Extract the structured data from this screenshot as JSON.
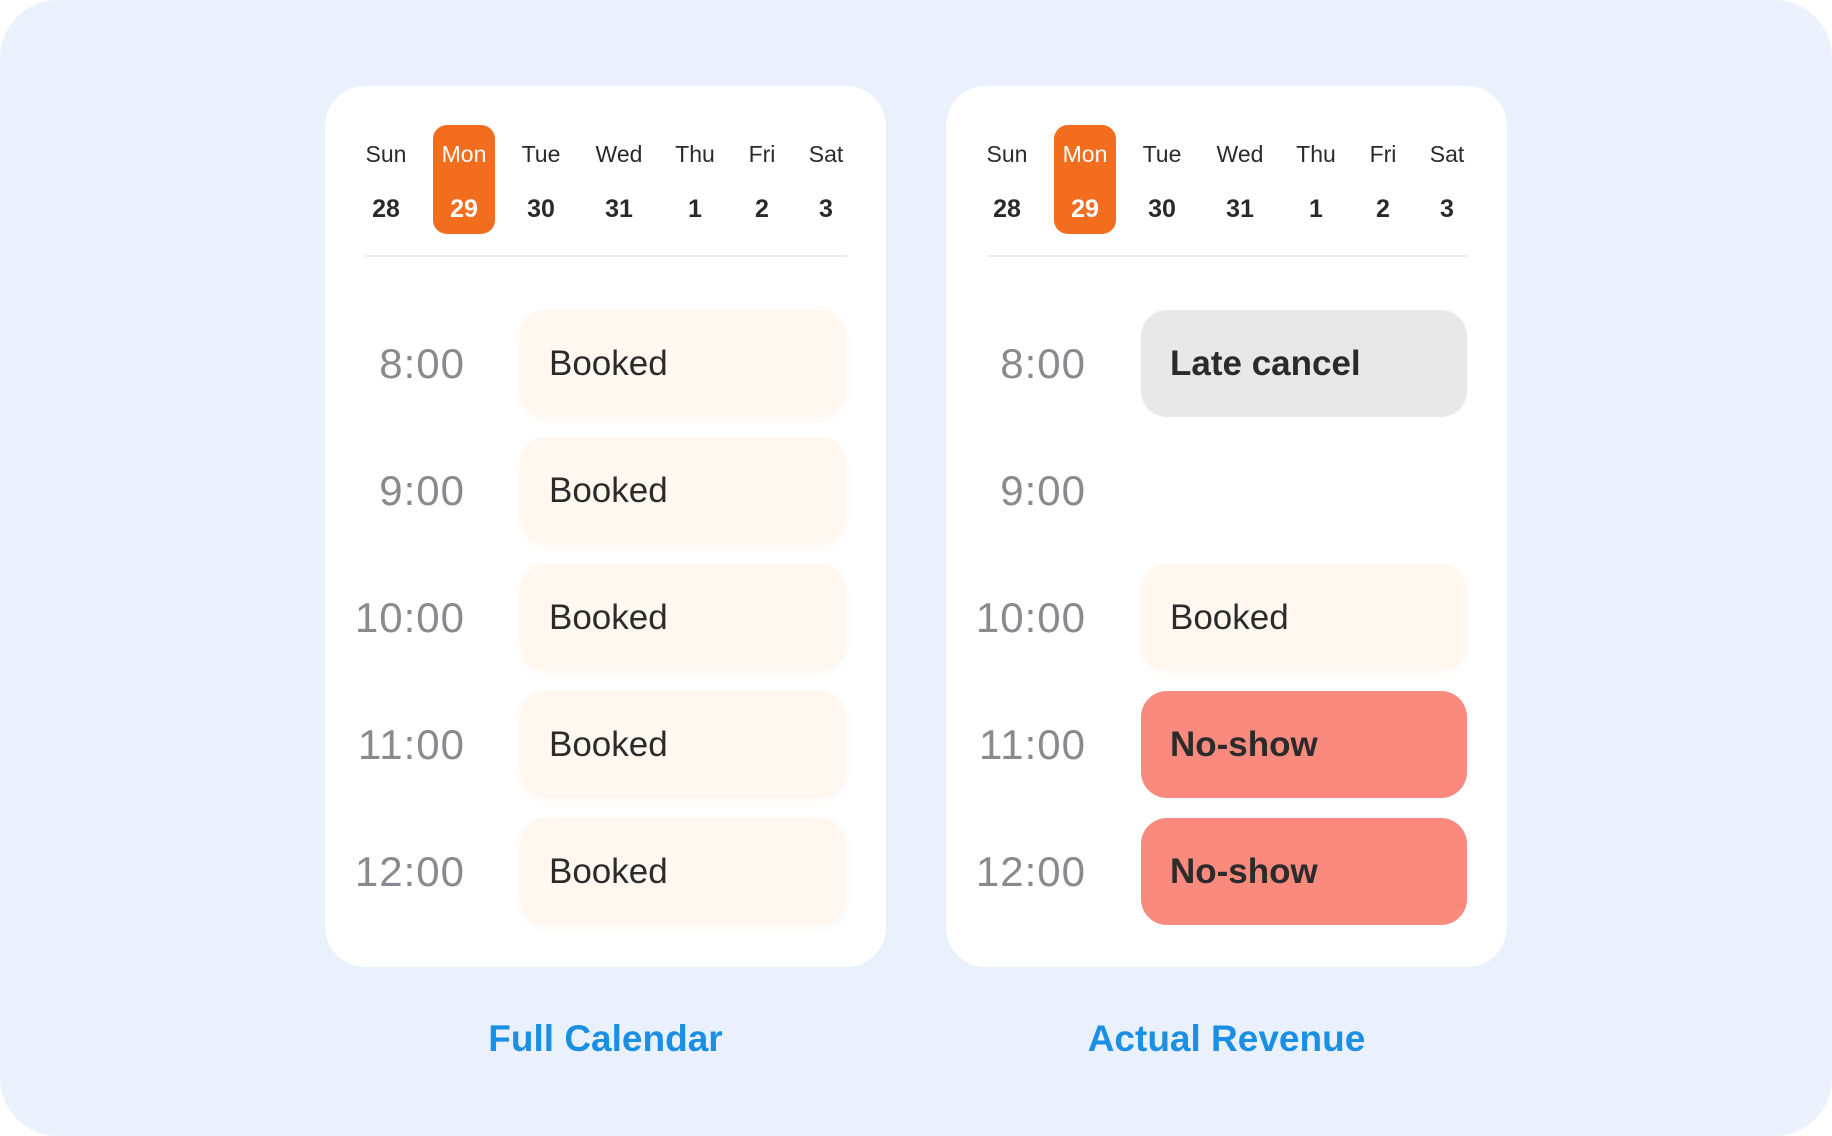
{
  "colors": {
    "background": "#EAF1FC",
    "selected_day": "#F26D1D",
    "booked": "#FFF7F0",
    "late_cancel": "#E8E8E8",
    "no_show": "#FA8A7E",
    "caption": "#1A8FE3"
  },
  "panels": [
    {
      "caption": "Full Calendar",
      "days": [
        {
          "name": "Sun",
          "date": "28"
        },
        {
          "name": "Mon",
          "date": "29",
          "selected": true
        },
        {
          "name": "Tue",
          "date": "30"
        },
        {
          "name": "Wed",
          "date": "31"
        },
        {
          "name": "Thu",
          "date": "1"
        },
        {
          "name": "Fri",
          "date": "2"
        },
        {
          "name": "Sat",
          "date": "3"
        }
      ],
      "slots": [
        {
          "time": "8:00",
          "label": "Booked",
          "status": "booked"
        },
        {
          "time": "9:00",
          "label": "Booked",
          "status": "booked"
        },
        {
          "time": "10:00",
          "label": "Booked",
          "status": "booked"
        },
        {
          "time": "11:00",
          "label": "Booked",
          "status": "booked"
        },
        {
          "time": "12:00",
          "label": "Booked",
          "status": "booked"
        }
      ]
    },
    {
      "caption": "Actual Revenue",
      "days": [
        {
          "name": "Sun",
          "date": "28"
        },
        {
          "name": "Mon",
          "date": "29",
          "selected": true
        },
        {
          "name": "Tue",
          "date": "30"
        },
        {
          "name": "Wed",
          "date": "31"
        },
        {
          "name": "Thu",
          "date": "1"
        },
        {
          "name": "Fri",
          "date": "2"
        },
        {
          "name": "Sat",
          "date": "3"
        }
      ],
      "slots": [
        {
          "time": "8:00",
          "label": "Late cancel",
          "status": "late_cancel"
        },
        {
          "time": "9:00",
          "label": "",
          "status": "empty"
        },
        {
          "time": "10:00",
          "label": "Booked",
          "status": "booked"
        },
        {
          "time": "11:00",
          "label": "No-show",
          "status": "no_show"
        },
        {
          "time": "12:00",
          "label": "No-show",
          "status": "no_show"
        }
      ]
    }
  ]
}
